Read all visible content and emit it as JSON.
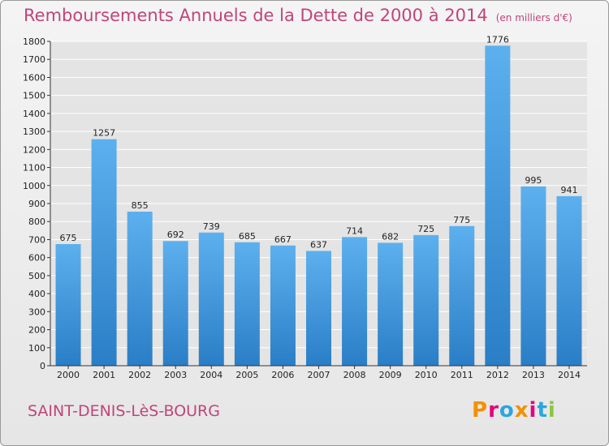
{
  "header": {
    "title": "Remboursements Annuels de la Dette de 2000 à 2014",
    "unit": "(en milliers d'€)"
  },
  "footer": {
    "city": "SAINT-DENIS-LèS-BOURG",
    "logo": "Proxiti",
    "logo_colors": [
      "#f29100",
      "#e4007c",
      "#2aa6e0",
      "#f29100",
      "#e4007c",
      "#2aa6e0",
      "#8cc63f"
    ]
  },
  "colors": {
    "bar": "#4ea3e6",
    "bar_dark": "#2b7fc8",
    "grid": "#ffffff",
    "axis": "#333333",
    "title": "#c0457a"
  },
  "chart_data": {
    "type": "bar",
    "categories": [
      "2000",
      "2001",
      "2002",
      "2003",
      "2004",
      "2005",
      "2006",
      "2007",
      "2008",
      "2009",
      "2010",
      "2011",
      "2012",
      "2013",
      "2014"
    ],
    "values": [
      675,
      1257,
      855,
      692,
      739,
      685,
      667,
      637,
      714,
      682,
      725,
      775,
      1776,
      995,
      941
    ],
    "ylim": [
      0,
      1800
    ],
    "ytick_step": 100,
    "grid": true
  }
}
